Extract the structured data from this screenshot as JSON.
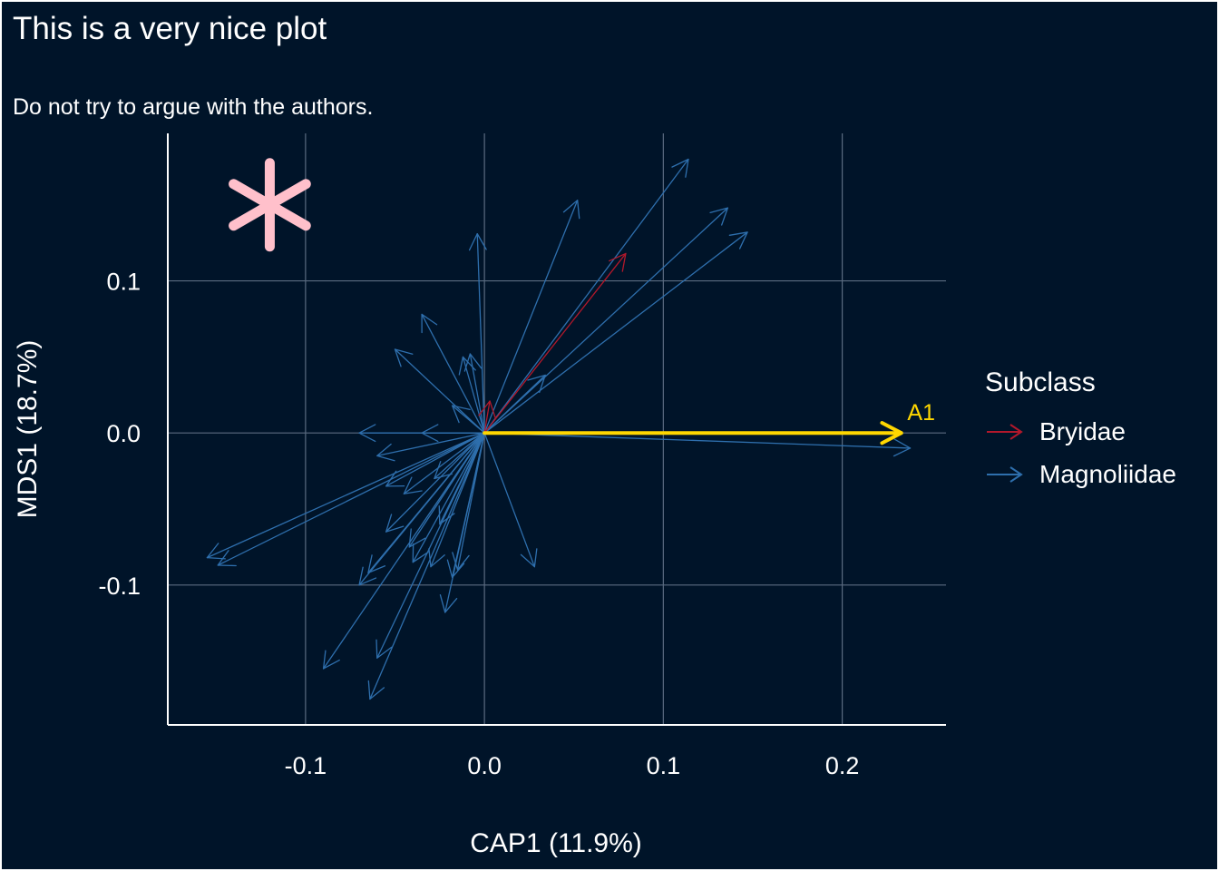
{
  "chart_data": {
    "type": "biplot",
    "title": "This is a very nice plot",
    "subtitle": "Do not try to argue with the authors.",
    "xlabel": "CAP1 (11.9%)",
    "ylabel": "MDS1 (18.7%)",
    "xlim": [
      -0.177,
      0.258
    ],
    "ylim": [
      -0.192,
      0.197
    ],
    "xticks": [
      -0.1,
      0.0,
      0.1,
      0.2
    ],
    "xtick_labels": [
      "-0.1",
      "0.0",
      "0.1",
      "0.2"
    ],
    "yticks": [
      -0.1,
      0.0,
      0.1
    ],
    "ytick_labels": [
      "-0.1",
      "0.0",
      "0.1"
    ],
    "grid": true,
    "colors": {
      "background": "#001429",
      "grid": "#5a6b80",
      "Bryidae": "#b2182b",
      "Magnoliidae": "#2e6fad",
      "highlight": "#ffd700",
      "star": "#ffc0cb"
    },
    "legend": {
      "title": "Subclass",
      "position": "right",
      "items": [
        {
          "label": "Bryidae",
          "color": "#b2182b"
        },
        {
          "label": "Magnoliidae",
          "color": "#2e6fad"
        }
      ]
    },
    "highlight_vector": {
      "label": "A1",
      "x": 0.233,
      "y": 0.0,
      "color": "#ffd700"
    },
    "star_marker": {
      "x": -0.12,
      "y": 0.15,
      "color": "#ffc0cb"
    },
    "series": [
      {
        "name": "Bryidae",
        "color": "#b2182b",
        "vectors": [
          {
            "x": 0.079,
            "y": 0.118
          },
          {
            "x": 0.003,
            "y": 0.021
          }
        ]
      },
      {
        "name": "Magnoliidae",
        "color": "#2e6fad",
        "vectors": [
          {
            "x": 0.238,
            "y": -0.01
          },
          {
            "x": 0.114,
            "y": 0.18
          },
          {
            "x": 0.136,
            "y": 0.148
          },
          {
            "x": 0.147,
            "y": 0.132
          },
          {
            "x": 0.052,
            "y": 0.153
          },
          {
            "x": -0.004,
            "y": 0.131
          },
          {
            "x": 0.034,
            "y": 0.038
          },
          {
            "x": -0.035,
            "y": 0.078
          },
          {
            "x": -0.05,
            "y": 0.055
          },
          {
            "x": -0.012,
            "y": 0.05
          },
          {
            "x": -0.008,
            "y": 0.052
          },
          {
            "x": -0.018,
            "y": 0.018
          },
          {
            "x": -0.07,
            "y": 0.0
          },
          {
            "x": -0.06,
            "y": -0.015
          },
          {
            "x": -0.035,
            "y": 0.0
          },
          {
            "x": -0.155,
            "y": -0.082
          },
          {
            "x": -0.149,
            "y": -0.087
          },
          {
            "x": -0.055,
            "y": -0.035
          },
          {
            "x": -0.045,
            "y": -0.04
          },
          {
            "x": -0.028,
            "y": -0.03
          },
          {
            "x": -0.055,
            "y": -0.065
          },
          {
            "x": -0.042,
            "y": -0.075
          },
          {
            "x": -0.065,
            "y": -0.092
          },
          {
            "x": -0.07,
            "y": -0.1
          },
          {
            "x": -0.09,
            "y": -0.155
          },
          {
            "x": -0.06,
            "y": -0.148
          },
          {
            "x": -0.064,
            "y": -0.175
          },
          {
            "x": -0.04,
            "y": -0.085
          },
          {
            "x": -0.03,
            "y": -0.088
          },
          {
            "x": -0.018,
            "y": -0.095
          },
          {
            "x": -0.015,
            "y": -0.09
          },
          {
            "x": -0.022,
            "y": -0.118
          },
          {
            "x": 0.028,
            "y": -0.088
          },
          {
            "x": -0.025,
            "y": -0.06
          }
        ]
      }
    ]
  }
}
